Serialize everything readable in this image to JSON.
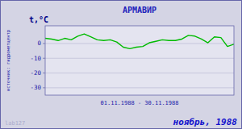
{
  "chart_data": {
    "type": "line",
    "title": "АРМАВИР",
    "y_label": "t,°C",
    "x_label": "01.11.1988 - 30.11.1988",
    "annotations": [
      "источник: гидрометцентр",
      "ноябрь, 1988",
      "lab127"
    ],
    "x": [
      1,
      2,
      3,
      4,
      5,
      6,
      7,
      8,
      9,
      10,
      11,
      12,
      13,
      14,
      15,
      16,
      17,
      18,
      19,
      20,
      21,
      22,
      23,
      24,
      25,
      26,
      27,
      28,
      29,
      30
    ],
    "values": [
      3.5,
      3.0,
      2.0,
      3.5,
      2.5,
      5.0,
      6.5,
      4.5,
      2.5,
      2.0,
      2.5,
      1.0,
      -2.5,
      -3.5,
      -2.5,
      -2.0,
      0.5,
      1.5,
      2.5,
      2.0,
      2.0,
      3.0,
      5.5,
      5.0,
      3.0,
      0.5,
      4.5,
      4.0,
      -2.0,
      -0.5
    ],
    "color": "#00bb00",
    "xlim": [
      1,
      30
    ],
    "xticks": [],
    "ylim": [
      -35,
      12
    ],
    "yticks": [
      0,
      -10,
      -20,
      -30
    ],
    "grid": true,
    "tick_labels": "y"
  }
}
